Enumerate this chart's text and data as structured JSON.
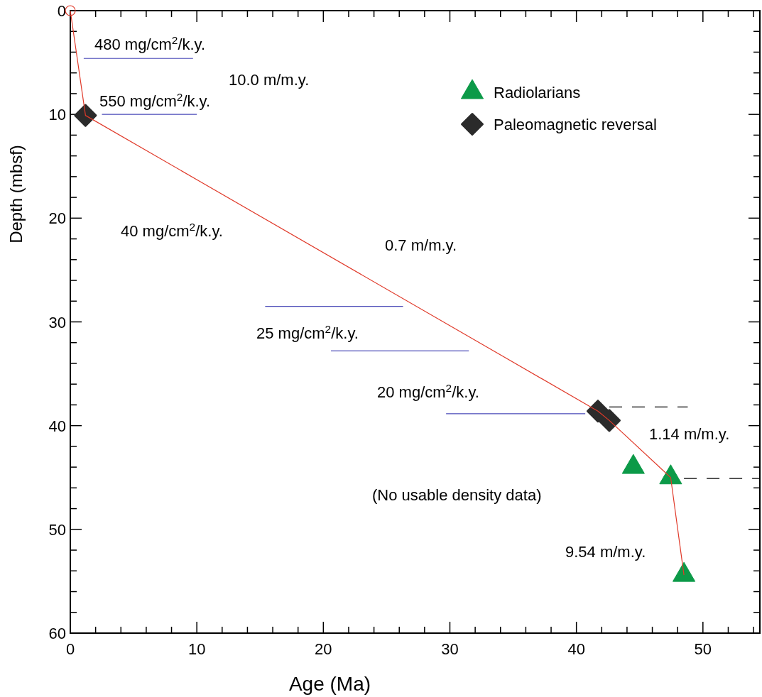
{
  "chart_data": {
    "type": "line",
    "xlabel": "Age (Ma)",
    "ylabel": "Depth (mbsf)",
    "xlim": [
      0,
      54.5
    ],
    "ylim": [
      60,
      0
    ],
    "xticks": [
      0,
      {
        "value": 2,
        "label": null
      },
      {
        "value": 4,
        "label": null
      },
      {
        "value": 6,
        "label": null
      },
      {
        "value": 8,
        "label": null
      },
      10,
      {
        "value": 12,
        "label": null
      },
      {
        "value": 14,
        "label": null
      },
      {
        "value": 16,
        "label": null
      },
      {
        "value": 18,
        "label": null
      },
      20,
      {
        "value": 22,
        "label": null
      },
      {
        "value": 24,
        "label": null
      },
      {
        "value": 26,
        "label": null
      },
      {
        "value": 28,
        "label": null
      },
      30,
      {
        "value": 32,
        "label": null
      },
      {
        "value": 34,
        "label": null
      },
      {
        "value": 36,
        "label": null
      },
      {
        "value": 38,
        "label": null
      },
      40,
      {
        "value": 42,
        "label": null
      },
      {
        "value": 44,
        "label": null
      },
      {
        "value": 46,
        "label": null
      },
      {
        "value": 48,
        "label": null
      },
      50,
      {
        "value": 52,
        "label": null
      },
      {
        "value": 54,
        "label": null
      }
    ],
    "yticks": [
      0,
      {
        "value": 2,
        "label": null
      },
      {
        "value": 4,
        "label": null
      },
      {
        "value": 6,
        "label": null
      },
      {
        "value": 8,
        "label": null
      },
      10,
      {
        "value": 12,
        "label": null
      },
      {
        "value": 14,
        "label": null
      },
      {
        "value": 16,
        "label": null
      },
      {
        "value": 18,
        "label": null
      },
      20,
      {
        "value": 22,
        "label": null
      },
      {
        "value": 24,
        "label": null
      },
      {
        "value": 26,
        "label": null
      },
      {
        "value": 28,
        "label": null
      },
      30,
      {
        "value": 32,
        "label": null
      },
      {
        "value": 34,
        "label": null
      },
      {
        "value": 36,
        "label": null
      },
      {
        "value": 38,
        "label": null
      },
      40,
      {
        "value": 42,
        "label": null
      },
      {
        "value": 44,
        "label": null
      },
      {
        "value": 46,
        "label": null
      },
      {
        "value": 48,
        "label": null
      },
      50,
      {
        "value": 52,
        "label": null
      },
      {
        "value": 54,
        "label": null
      },
      {
        "value": 56,
        "label": null
      },
      {
        "value": 58,
        "label": null
      },
      60
    ],
    "grid": false,
    "legend": "top right",
    "series": [
      {
        "color": "#e03a2a",
        "line_style": "solid",
        "marker": "none",
        "x": [
          0,
          1.2,
          41.7,
          42.6,
          47.45,
          48.5
        ],
        "values": [
          0,
          10.1,
          38.6,
          39.5,
          45.0,
          54.4
        ]
      },
      {
        "type": "line",
        "color": "#4a4ab8",
        "line_style": "solid",
        "marker": "none",
        "x": [
          1.06,
          9.7
        ],
        "values": [
          4.6,
          4.6
        ]
      },
      {
        "type": "line",
        "color": "#4a4ab8",
        "line_style": "solid",
        "marker": "none",
        "x": [
          2.5,
          10.0
        ],
        "values": [
          10.0,
          10.0
        ]
      },
      {
        "type": "line",
        "color": "#4a4ab8",
        "line_style": "solid",
        "marker": "none",
        "x": [
          15.4,
          26.3
        ],
        "values": [
          28.5,
          28.5
        ]
      },
      {
        "type": "line",
        "color": "#4a4ab8",
        "line_style": "solid",
        "marker": "none",
        "x": [
          20.6,
          31.5
        ],
        "values": [
          32.8,
          32.8
        ]
      },
      {
        "type": "line",
        "color": "#4a4ab8",
        "line_style": "solid",
        "marker": "none",
        "x": [
          29.7,
          40.7
        ],
        "values": [
          38.85,
          38.85
        ]
      },
      {
        "type": "line",
        "color": "#000000",
        "line_style": "dashed",
        "marker": "none",
        "x": [
          42.6,
          48.8
        ],
        "values": [
          38.2,
          38.2
        ]
      },
      {
        "type": "line",
        "color": "#000000",
        "line_style": "dashed",
        "marker": "none",
        "x": [
          48.5,
          54.5
        ],
        "values": [
          45.1,
          45.1
        ]
      },
      {
        "type": "scatter",
        "color": "#e03a2a",
        "marker": "circle",
        "x": [
          0
        ],
        "values": [
          0
        ]
      },
      {
        "type": "scatter",
        "name": "Radiolarians",
        "color": "#0c9a48",
        "marker": "triangle",
        "x": [
          44.5,
          47.45,
          48.5
        ],
        "values": [
          44.0,
          45.0,
          54.4
        ]
      },
      {
        "type": "scatter",
        "name": "Paleomagnetic reversal",
        "color": "#2b2b2b",
        "marker": "diamond",
        "x": [
          1.2,
          41.7,
          42.6
        ],
        "values": [
          10.1,
          38.6,
          39.5
        ]
      }
    ],
    "annotations": [
      "480 mg/cm$^{2}$/k.y.",
      "10.0 m/m.y.",
      "550 mg/cm$^{2}$/k.y.",
      "40 mg/cm$^{2}$/k.y.",
      "0.7 m/m.y.",
      "25 mg/cm$^{2}$/k.y.",
      "20 mg/cm$^{2}$/k.y.",
      "1.14 m/m.y.",
      "(No usable density data)",
      "9.54 m/m.y."
    ]
  }
}
